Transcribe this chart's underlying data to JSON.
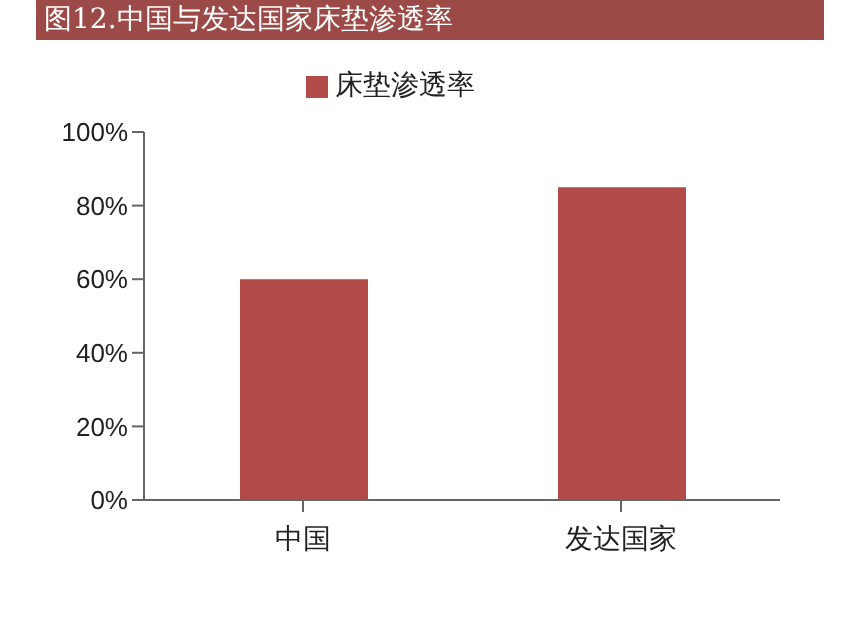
{
  "chart_data": {
    "type": "bar",
    "title": "图12.中国与发达国家床垫渗透率",
    "categories": [
      "中国",
      "发达国家"
    ],
    "series": [
      {
        "name": "床垫渗透率",
        "color": "#b24a48",
        "values": [
          60,
          85
        ]
      }
    ],
    "ylim": [
      0,
      100
    ],
    "yticks": [
      {
        "value": 0,
        "label": "0%"
      },
      {
        "value": 20,
        "label": "20%"
      },
      {
        "value": 40,
        "label": "40%"
      },
      {
        "value": 60,
        "label": "60%"
      },
      {
        "value": 80,
        "label": "80%"
      },
      {
        "value": 100,
        "label": "100%"
      }
    ],
    "grid": false,
    "legend": "top"
  }
}
